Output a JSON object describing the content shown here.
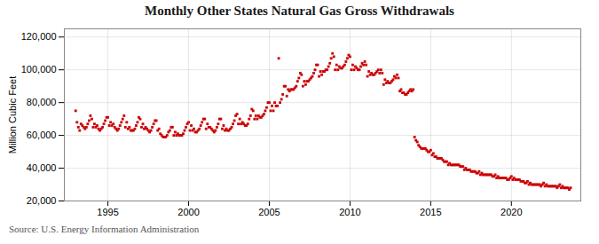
{
  "chart_data": {
    "type": "scatter",
    "title": "Monthly Other States Natural Gas Gross Withdrawals",
    "ylabel": "Million Cubic Feet",
    "caption": "Source: U.S. Energy Information Administration",
    "color": "#cc0000",
    "marker": "square",
    "grid": true,
    "xlim": [
      1992.3,
      2024.3
    ],
    "xticks": [
      1995,
      2000,
      2005,
      2010,
      2015,
      2020
    ],
    "ylim": [
      20000,
      125000
    ],
    "yticks": [
      {
        "value": 20000,
        "label": "20,000"
      },
      {
        "value": 40000,
        "label": "40,000"
      },
      {
        "value": 60000,
        "label": "60,000"
      },
      {
        "value": 80000,
        "label": "80,000"
      },
      {
        "value": 100000,
        "label": "100,000"
      },
      {
        "value": 120000,
        "label": "120,000"
      }
    ],
    "x": [
      1993,
      1993.0833333333333,
      1993.1666666666667,
      1993.25,
      1993.3333333333333,
      1993.4166666666667,
      1993.5,
      1993.5833333333333,
      1993.6666666666667,
      1993.75,
      1993.8333333333333,
      1993.9166666666667,
      1994,
      1994.0833333333333,
      1994.1666666666667,
      1994.25,
      1994.3333333333333,
      1994.4166666666667,
      1994.5,
      1994.5833333333333,
      1994.6666666666667,
      1994.75,
      1994.8333333333333,
      1994.9166666666667,
      1995,
      1995.0833333333333,
      1995.1666666666667,
      1995.25,
      1995.3333333333333,
      1995.4166666666667,
      1995.5,
      1995.5833333333333,
      1995.6666666666667,
      1995.75,
      1995.8333333333333,
      1995.9166666666667,
      1996,
      1996.0833333333333,
      1996.1666666666667,
      1996.25,
      1996.3333333333333,
      1996.4166666666667,
      1996.5,
      1996.5833333333333,
      1996.6666666666667,
      1996.75,
      1996.8333333333333,
      1996.9166666666667,
      1997,
      1997.0833333333333,
      1997.1666666666667,
      1997.25,
      1997.3333333333333,
      1997.4166666666667,
      1997.5,
      1997.5833333333333,
      1997.6666666666667,
      1997.75,
      1997.8333333333333,
      1997.9166666666667,
      1998,
      1998.0833333333333,
      1998.1666666666667,
      1998.25,
      1998.3333333333333,
      1998.4166666666667,
      1998.5,
      1998.5833333333333,
      1998.6666666666667,
      1998.75,
      1998.8333333333333,
      1998.9166666666667,
      1999,
      1999.0833333333333,
      1999.1666666666667,
      1999.25,
      1999.3333333333333,
      1999.4166666666667,
      1999.5,
      1999.5833333333333,
      1999.6666666666667,
      1999.75,
      1999.8333333333333,
      1999.9166666666667,
      2000,
      2000.0833333333333,
      2000.1666666666667,
      2000.25,
      2000.3333333333333,
      2000.4166666666667,
      2000.5,
      2000.5833333333333,
      2000.6666666666667,
      2000.75,
      2000.8333333333333,
      2000.9166666666667,
      2001,
      2001.0833333333333,
      2001.1666666666667,
      2001.25,
      2001.3333333333333,
      2001.4166666666667,
      2001.5,
      2001.5833333333333,
      2001.6666666666667,
      2001.75,
      2001.8333333333333,
      2001.9166666666667,
      2002,
      2002.0833333333333,
      2002.1666666666667,
      2002.25,
      2002.3333333333333,
      2002.4166666666667,
      2002.5,
      2002.5833333333333,
      2002.6666666666667,
      2002.75,
      2002.8333333333333,
      2002.9166666666667,
      2003,
      2003.0833333333333,
      2003.1666666666667,
      2003.25,
      2003.3333333333333,
      2003.4166666666667,
      2003.5,
      2003.5833333333333,
      2003.6666666666667,
      2003.75,
      2003.8333333333333,
      2003.9166666666667,
      2004,
      2004.0833333333333,
      2004.1666666666667,
      2004.25,
      2004.3333333333333,
      2004.4166666666667,
      2004.5,
      2004.5833333333333,
      2004.6666666666667,
      2004.75,
      2004.8333333333333,
      2004.9166666666667,
      2005,
      2005.0833333333333,
      2005.1666666666667,
      2005.25,
      2005.3333333333333,
      2005.4166666666667,
      2005.5,
      2005.5833333333333,
      2005.6666666666667,
      2005.75,
      2005.8333333333333,
      2005.9166666666667,
      2006,
      2006.0833333333333,
      2006.1666666666667,
      2006.25,
      2006.3333333333333,
      2006.4166666666667,
      2006.5,
      2006.5833333333333,
      2006.6666666666667,
      2006.75,
      2006.8333333333333,
      2006.9166666666667,
      2007,
      2007.0833333333333,
      2007.1666666666667,
      2007.25,
      2007.3333333333333,
      2007.4166666666667,
      2007.5,
      2007.5833333333333,
      2007.6666666666667,
      2007.75,
      2007.8333333333333,
      2007.9166666666667,
      2008,
      2008.0833333333333,
      2008.1666666666667,
      2008.25,
      2008.3333333333333,
      2008.4166666666667,
      2008.5,
      2008.5833333333333,
      2008.6666666666667,
      2008.75,
      2008.8333333333333,
      2008.9166666666667,
      2009,
      2009.0833333333333,
      2009.1666666666667,
      2009.25,
      2009.3333333333333,
      2009.4166666666667,
      2009.5,
      2009.5833333333333,
      2009.6666666666667,
      2009.75,
      2009.8333333333333,
      2009.9166666666667,
      2010,
      2010.0833333333333,
      2010.1666666666667,
      2010.25,
      2010.3333333333333,
      2010.4166666666667,
      2010.5,
      2010.5833333333333,
      2010.6666666666667,
      2010.75,
      2010.8333333333333,
      2010.9166666666667,
      2011,
      2011.0833333333333,
      2011.1666666666667,
      2011.25,
      2011.3333333333333,
      2011.4166666666667,
      2011.5,
      2011.5833333333333,
      2011.6666666666667,
      2011.75,
      2011.8333333333333,
      2011.9166666666667,
      2012,
      2012.0833333333333,
      2012.1666666666667,
      2012.25,
      2012.3333333333333,
      2012.4166666666667,
      2012.5,
      2012.5833333333333,
      2012.6666666666667,
      2012.75,
      2012.8333333333333,
      2012.9166666666667,
      2013,
      2013.0833333333333,
      2013.1666666666667,
      2013.25,
      2013.3333333333333,
      2013.4166666666667,
      2013.5,
      2013.5833333333333,
      2013.6666666666667,
      2013.75,
      2013.8333333333333,
      2013.9166666666667,
      2014,
      2014.0833333333333,
      2014.1666666666667,
      2014.25,
      2014.3333333333333,
      2014.4166666666667,
      2014.5,
      2014.5833333333333,
      2014.6666666666667,
      2014.75,
      2014.8333333333333,
      2014.9166666666667,
      2015,
      2015.0833333333333,
      2015.1666666666667,
      2015.25,
      2015.3333333333333,
      2015.4166666666667,
      2015.5,
      2015.5833333333333,
      2015.6666666666667,
      2015.75,
      2015.8333333333333,
      2015.9166666666667,
      2016,
      2016.0833333333333,
      2016.1666666666667,
      2016.25,
      2016.3333333333333,
      2016.4166666666667,
      2016.5,
      2016.5833333333333,
      2016.6666666666667,
      2016.75,
      2016.8333333333333,
      2016.9166666666667,
      2017,
      2017.0833333333333,
      2017.1666666666667,
      2017.25,
      2017.3333333333333,
      2017.4166666666667,
      2017.5,
      2017.5833333333333,
      2017.6666666666667,
      2017.75,
      2017.8333333333333,
      2017.9166666666667,
      2018,
      2018.0833333333333,
      2018.1666666666667,
      2018.25,
      2018.3333333333333,
      2018.4166666666667,
      2018.5,
      2018.5833333333333,
      2018.6666666666667,
      2018.75,
      2018.8333333333333,
      2018.9166666666667,
      2019,
      2019.0833333333333,
      2019.1666666666667,
      2019.25,
      2019.3333333333333,
      2019.4166666666667,
      2019.5,
      2019.5833333333333,
      2019.6666666666667,
      2019.75,
      2019.8333333333333,
      2019.9166666666667,
      2020,
      2020.0833333333333,
      2020.1666666666667,
      2020.25,
      2020.3333333333333,
      2020.4166666666667,
      2020.5,
      2020.5833333333333,
      2020.6666666666667,
      2020.75,
      2020.8333333333333,
      2020.9166666666667,
      2021,
      2021.0833333333333,
      2021.1666666666667,
      2021.25,
      2021.3333333333333,
      2021.4166666666667,
      2021.5,
      2021.5833333333333,
      2021.6666666666667,
      2021.75,
      2021.8333333333333,
      2021.9166666666667,
      2022,
      2022.0833333333333,
      2022.1666666666667,
      2022.25,
      2022.3333333333333,
      2022.4166666666667,
      2022.5,
      2022.5833333333333,
      2022.6666666666667,
      2022.75,
      2022.8333333333333,
      2022.9166666666667,
      2023,
      2023.0833333333333,
      2023.1666666666667,
      2023.25,
      2023.3333333333333,
      2023.4166666666667,
      2023.5,
      2023.5833333333333,
      2023.6666666666667
    ],
    "values": [
      75000,
      68000,
      65000,
      63000,
      67000,
      66000,
      65000,
      64000,
      65000,
      67000,
      69000,
      72000,
      70000,
      65000,
      67000,
      65000,
      66000,
      64000,
      63000,
      64000,
      65000,
      67000,
      69000,
      71000,
      71000,
      66000,
      68000,
      66000,
      67000,
      65000,
      64000,
      63000,
      64000,
      66000,
      68000,
      70000,
      72000,
      65000,
      68000,
      64000,
      65000,
      63000,
      63000,
      63000,
      64000,
      66000,
      68000,
      71000,
      70000,
      65000,
      67000,
      64000,
      65000,
      64000,
      63000,
      62000,
      63000,
      65000,
      67000,
      69000,
      69000,
      63000,
      64000,
      61000,
      60000,
      59000,
      59000,
      59000,
      60000,
      62000,
      63000,
      65000,
      65000,
      60000,
      62000,
      60000,
      61000,
      60000,
      60000,
      60000,
      61000,
      63000,
      65000,
      67000,
      68000,
      63000,
      66000,
      63000,
      64000,
      62000,
      62000,
      63000,
      64000,
      66000,
      68000,
      70000,
      70000,
      64000,
      67000,
      65000,
      65000,
      64000,
      63000,
      62000,
      63000,
      65000,
      67000,
      70000,
      70000,
      64000,
      66000,
      63000,
      64000,
      63000,
      63000,
      64000,
      65000,
      67000,
      69000,
      72000,
      73000,
      67000,
      70000,
      67000,
      68000,
      67000,
      66000,
      66000,
      67000,
      70000,
      72000,
      76000,
      75000,
      70000,
      72000,
      70000,
      72000,
      71000,
      71000,
      72000,
      73000,
      75000,
      77000,
      80000,
      80000,
      75000,
      78000,
      75000,
      80000,
      78000,
      78000,
      107000,
      80000,
      82000,
      85000,
      90000,
      90000,
      84000,
      88000,
      87000,
      88000,
      88000,
      88000,
      89000,
      90000,
      93000,
      95000,
      98000,
      97000,
      90000,
      93000,
      91000,
      93000,
      93000,
      94000,
      95000,
      96000,
      98000,
      100000,
      103000,
      103000,
      96000,
      99000,
      97000,
      99000,
      99000,
      100000,
      100000,
      102000,
      104000,
      107000,
      110000,
      108000,
      100000,
      103000,
      100000,
      102000,
      101000,
      101000,
      102000,
      103000,
      105000,
      107000,
      109000,
      108000,
      100000,
      103000,
      100000,
      102000,
      101000,
      100000,
      100000,
      102000,
      104000,
      103000,
      105000,
      103000,
      96000,
      99000,
      97000,
      98000,
      97000,
      97000,
      98000,
      99000,
      100000,
      98000,
      100000,
      98000,
      91000,
      94000,
      92000,
      93000,
      92000,
      92000,
      93000,
      94000,
      96000,
      95000,
      97000,
      95000,
      87000,
      88000,
      86000,
      86000,
      85000,
      85000,
      86000,
      87000,
      88000,
      87000,
      88000,
      59000,
      57000,
      56000,
      54000,
      53000,
      52000,
      52000,
      52000,
      52000,
      51000,
      50000,
      50000,
      51000,
      48000,
      49000,
      47000,
      47000,
      46000,
      46000,
      46000,
      46000,
      45000,
      44000,
      44000,
      44000,
      42000,
      43000,
      42000,
      42000,
      42000,
      42000,
      42000,
      42000,
      42000,
      41000,
      41000,
      41000,
      39000,
      40000,
      39000,
      39000,
      39000,
      38000,
      38000,
      38000,
      38000,
      37000,
      37000,
      38000,
      36000,
      37000,
      36000,
      36000,
      36000,
      36000,
      36000,
      36000,
      36000,
      35000,
      35000,
      36000,
      34000,
      35000,
      34000,
      34000,
      34000,
      34000,
      34000,
      34000,
      33000,
      33000,
      34000,
      35000,
      33000,
      34000,
      33000,
      33000,
      33000,
      33000,
      32000,
      32000,
      32000,
      31000,
      31000,
      32000,
      30000,
      31000,
      30000,
      30000,
      30000,
      30000,
      30000,
      30000,
      30000,
      29000,
      30000,
      31000,
      29000,
      30000,
      29000,
      29000,
      29000,
      29000,
      29000,
      29000,
      29000,
      28000,
      29000,
      30000,
      28000,
      29000,
      28000,
      28000,
      28000,
      28000,
      27000,
      28000
    ]
  }
}
